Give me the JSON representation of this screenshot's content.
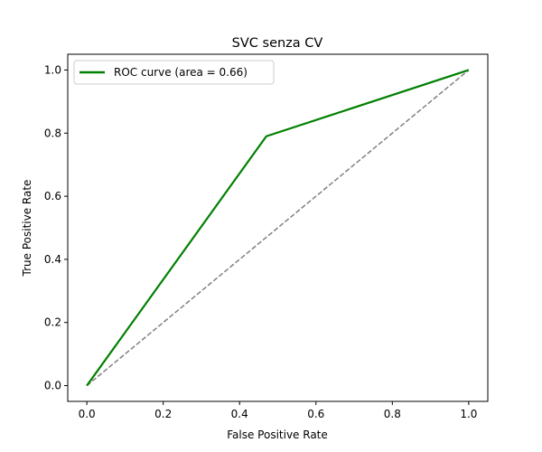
{
  "chart_data": {
    "type": "line",
    "title": "SVC senza CV",
    "xlabel": "False Positive Rate",
    "ylabel": "True Positive Rate",
    "xlim": [
      -0.05,
      1.05
    ],
    "ylim": [
      -0.05,
      1.05
    ],
    "xticks": [
      "0.0",
      "0.2",
      "0.4",
      "0.6",
      "0.8",
      "1.0"
    ],
    "yticks": [
      "0.0",
      "0.2",
      "0.4",
      "0.6",
      "0.8",
      "1.0"
    ],
    "grid": false,
    "legend_position": "top-left",
    "series": [
      {
        "name": "ROC curve (area = 0.66)",
        "x": [
          0.0,
          0.47,
          1.0
        ],
        "y": [
          0.0,
          0.79,
          1.0
        ],
        "color": "#008000",
        "style": "solid"
      },
      {
        "x": [
          0.0,
          1.0
        ],
        "y": [
          0.0,
          1.0
        ],
        "color": "#808080",
        "style": "dashed"
      }
    ]
  }
}
